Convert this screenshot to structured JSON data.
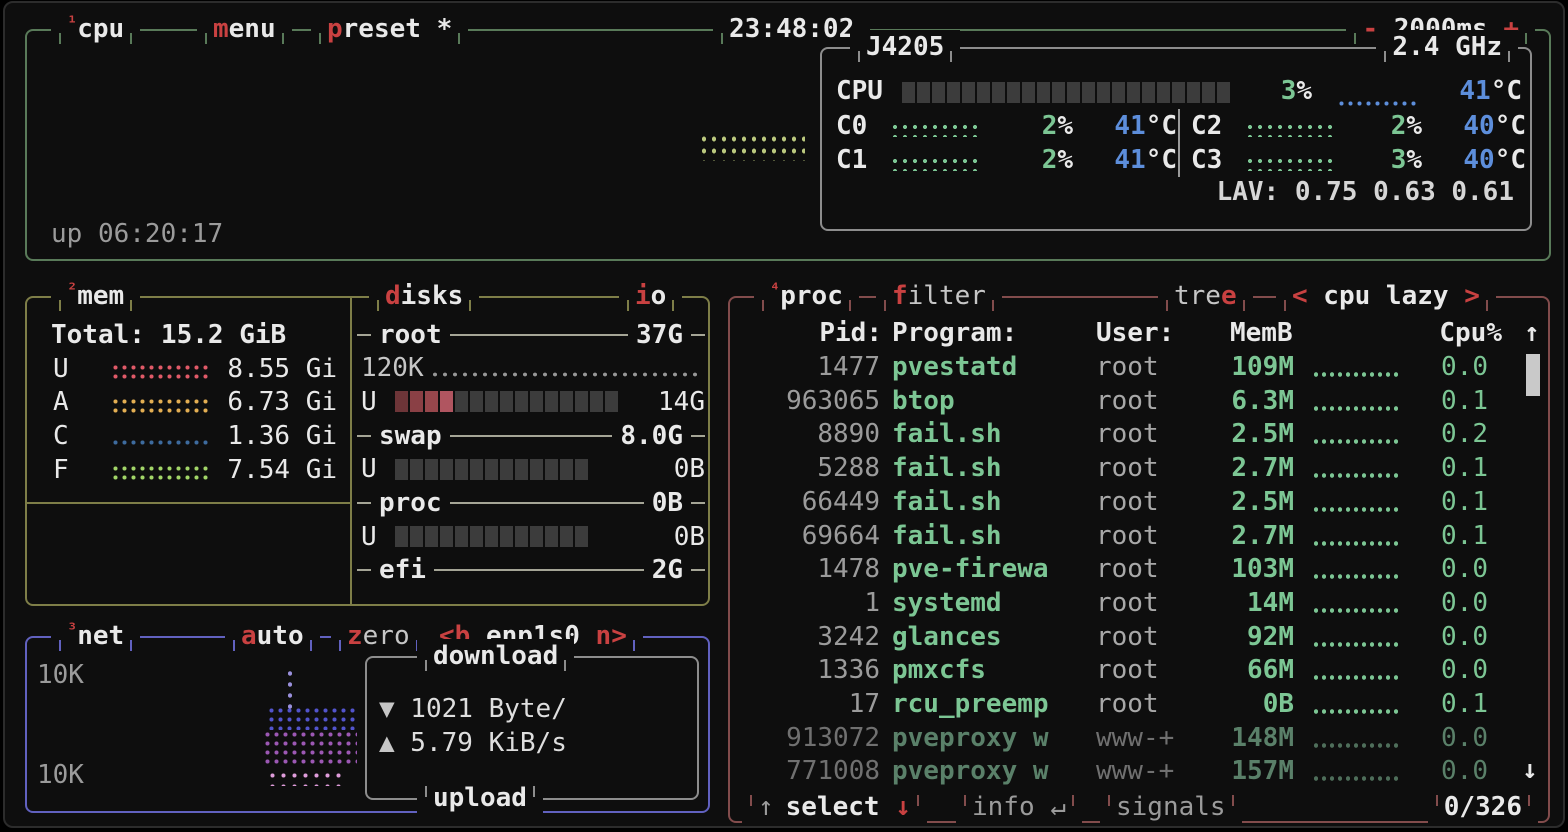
{
  "colors": {
    "background": "#0e0e0e",
    "accent_red": "#c94141",
    "value_green": "#7cc694",
    "temp_blue": "#5d8edb",
    "cpu_box_border": "#597a59",
    "mem_box_border": "#7e7e48",
    "net_box_border": "#6161bf",
    "proc_box_border": "#824c4c",
    "inner_box_border": "#8d8d8d",
    "bar_empty": "#3c3c3c",
    "bar_used_red": [
      "#6d3538",
      "#8a4045",
      "#97474c",
      "#b05560"
    ],
    "mem_used_dots": "#e05a68",
    "mem_available_dots": "#e3ae52",
    "mem_cached_dots": "#3d6b9e",
    "mem_free_dots": "#a2d568",
    "cpu_graph_dots": "#bac77d",
    "io_graph_dots": "#969696",
    "core_graph_dots": "#7cc694",
    "net_download_dots": "#5254cc",
    "net_upload_dots": "#9c58b4",
    "net_upload_light_dots": "#df9cda",
    "net_spike_dots": "#9a90dc",
    "scrollbar": "#c9c9c9"
  },
  "cpu": {
    "num": "¹",
    "title": "cpu",
    "menu": {
      "hot": "m",
      "rest": "enu"
    },
    "preset": {
      "hot": "p",
      "rest": "reset *"
    },
    "clock": "23:48:02",
    "interval": {
      "minus": "-",
      "value": " 2000ms ",
      "plus": "+"
    },
    "model": "J4205",
    "freq": "2.4 GHz",
    "total_row": {
      "label": "CPU",
      "pct": "3",
      "pct_unit": "%",
      "temp": "41",
      "temp_unit": "°C"
    },
    "cores": [
      {
        "label": "C0",
        "pct": "2",
        "temp": "41"
      },
      {
        "label": "C1",
        "pct": "2",
        "temp": "41"
      },
      {
        "label": "C2",
        "pct": "2",
        "temp": "40"
      },
      {
        "label": "C3",
        "pct": "3",
        "temp": "40"
      }
    ],
    "pct_unit": "%",
    "temp_unit": "°C",
    "load_avg": "LAV: 0.75 0.63 0.61",
    "uptime": "up 06:20:17"
  },
  "mem": {
    "num": "²",
    "title": "mem",
    "total_label": "Total:",
    "total_value": "15.2 GiB",
    "rows": [
      {
        "key": "U",
        "value": "8.55 Gi",
        "color": "#e05a68",
        "full": true
      },
      {
        "key": "A",
        "value": "6.73 Gi",
        "color": "#e3ae52",
        "full": true
      },
      {
        "key": "C",
        "value": "1.36 Gi",
        "color": "#3d6b9e",
        "full": false
      },
      {
        "key": "F",
        "value": "7.54 Gi",
        "color": "#a2d568",
        "full": true
      }
    ]
  },
  "disks": {
    "title": {
      "hot": "d",
      "rest": "isks"
    },
    "io": {
      "hot": "i",
      "rest": "o"
    },
    "used_label": "U",
    "entries": [
      {
        "name": "root",
        "size": "37G",
        "io": "120K",
        "used": "14G",
        "used_blocks": 4,
        "total_blocks": 15
      },
      {
        "name": "swap",
        "size": "8.0G",
        "used": "0B",
        "used_blocks": 0,
        "total_blocks": 13
      },
      {
        "name": "proc",
        "size": "0B",
        "used": "0B",
        "used_blocks": 0,
        "total_blocks": 13
      },
      {
        "name": "efi",
        "size": "2G"
      }
    ]
  },
  "net": {
    "num": "³",
    "title": "net",
    "auto": {
      "hot": "a",
      "rest": "uto"
    },
    "zero": {
      "hot": "z",
      "rest": "ero"
    },
    "iface": {
      "left": "<b",
      "name": " enp1s0 ",
      "right": "n>"
    },
    "scale_top": "10K",
    "scale_bottom": "10K",
    "download": {
      "label": "download",
      "arrow": "▼",
      "value": " 1021 Byte/"
    },
    "upload": {
      "label": "upload",
      "arrow": "▲",
      "value": " 5.79 KiB/s"
    }
  },
  "proc": {
    "num": "⁴",
    "title": "proc",
    "filter": {
      "hot": "f",
      "rest": "ilter"
    },
    "tree": {
      "pre": "tre",
      "hot": "e"
    },
    "sort": {
      "left": "<",
      "label": " cpu lazy ",
      "right": ">"
    },
    "headers": {
      "pid": "Pid:",
      "program": "Program:",
      "user": "User:",
      "mem": "MemB",
      "cpu": "Cpu%"
    },
    "scroll_up": "↑",
    "scroll_down": "↓",
    "rows": [
      {
        "pid": "1477",
        "program": "pvestatd",
        "user": "root",
        "mem": "109M",
        "cpu": "0.0",
        "dim": false
      },
      {
        "pid": "963065",
        "program": "btop",
        "user": "root",
        "mem": "6.3M",
        "cpu": "0.1",
        "dim": false
      },
      {
        "pid": "8890",
        "program": "fail.sh",
        "user": "root",
        "mem": "2.5M",
        "cpu": "0.2",
        "dim": false
      },
      {
        "pid": "5288",
        "program": "fail.sh",
        "user": "root",
        "mem": "2.7M",
        "cpu": "0.1",
        "dim": false
      },
      {
        "pid": "66449",
        "program": "fail.sh",
        "user": "root",
        "mem": "2.5M",
        "cpu": "0.1",
        "dim": false
      },
      {
        "pid": "69664",
        "program": "fail.sh",
        "user": "root",
        "mem": "2.7M",
        "cpu": "0.1",
        "dim": false
      },
      {
        "pid": "1478",
        "program": "pve-firewa",
        "user": "root",
        "mem": "103M",
        "cpu": "0.0",
        "dim": false
      },
      {
        "pid": "1",
        "program": "systemd",
        "user": "root",
        "mem": "14M",
        "cpu": "0.0",
        "dim": false
      },
      {
        "pid": "3242",
        "program": "glances",
        "user": "root",
        "mem": "92M",
        "cpu": "0.0",
        "dim": false
      },
      {
        "pid": "1336",
        "program": "pmxcfs",
        "user": "root",
        "mem": "66M",
        "cpu": "0.0",
        "dim": false
      },
      {
        "pid": "17",
        "program": "rcu_preemp",
        "user": "root",
        "mem": "0B",
        "cpu": "0.1",
        "dim": false
      },
      {
        "pid": "913072",
        "program": "pveproxy w",
        "user": "www-+",
        "mem": "148M",
        "cpu": "0.0",
        "dim": true
      },
      {
        "pid": "771008",
        "program": "pveproxy w",
        "user": "www-+",
        "mem": "157M",
        "cpu": "0.0",
        "dim": true
      }
    ],
    "footer": {
      "up_arrow": "↑",
      "select": "select ",
      "down_arrow": "↓",
      "info": "info ",
      "enter": "↵",
      "signals": "signals",
      "count": "0/326"
    }
  }
}
